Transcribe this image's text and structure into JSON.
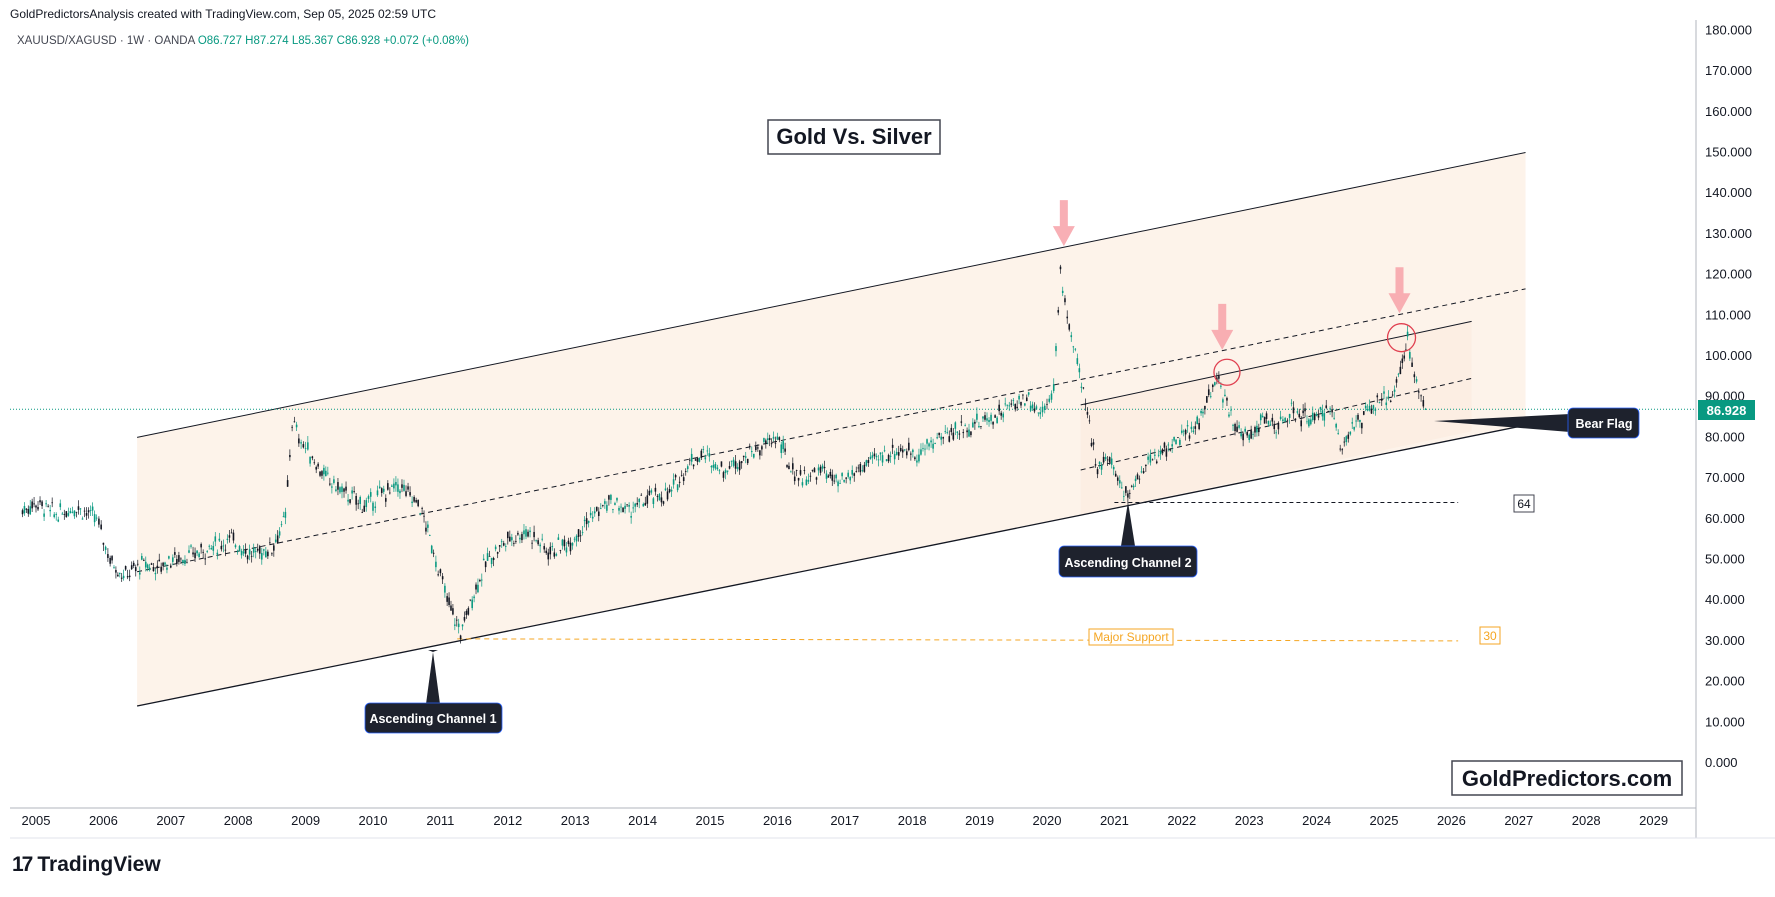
{
  "header": {
    "credit": "GoldPredictorsAnalysis created with TradingView.com, Sep 05, 2025 02:59 UTC",
    "symbol": "XAUUSD/XAGUSD · 1W · OANDA",
    "open": "O86.727",
    "high": "H87.274",
    "low": "L85.367",
    "close": "C86.928",
    "change": "+0.072 (+0.08%)"
  },
  "title": "Gold Vs. Silver",
  "watermark": "GoldPredictors.com",
  "footer": {
    "logo_text": "TradingView",
    "logo_glyph": "17"
  },
  "last_price": "86.928",
  "annotations": {
    "channel1": "Ascending Channel 1",
    "channel2": "Ascending Channel 2",
    "bear_flag": "Bear Flag",
    "major_support": "Major Support",
    "level_64": "64",
    "level_30": "30"
  },
  "colors": {
    "channel_fill": "#fdefe3",
    "up_candle": "#089981",
    "down_candle": "#131722",
    "support_line": "#f5a623",
    "arrow": "#f7a1a8",
    "circle": "#e04050",
    "price_badge": "#089981"
  },
  "chart_data": {
    "type": "line",
    "symbol": "XAUUSD/XAGUSD",
    "interval": "1W",
    "yaxis": {
      "ticks": [
        "180.000",
        "170.000",
        "160.000",
        "150.000",
        "140.000",
        "130.000",
        "120.000",
        "110.000",
        "100.000",
        "90.000",
        "80.000",
        "70.000",
        "60.000",
        "50.000",
        "40.000",
        "30.000",
        "20.000",
        "10.000",
        "0.000"
      ],
      "range": [
        0,
        180
      ]
    },
    "xaxis": {
      "ticks": [
        "2005",
        "2006",
        "2007",
        "2008",
        "2009",
        "2010",
        "2011",
        "2012",
        "2013",
        "2014",
        "2015",
        "2016",
        "2017",
        "2018",
        "2019",
        "2020",
        "2021",
        "2022",
        "2023",
        "2024",
        "2025",
        "2026",
        "2027",
        "2028",
        "2029"
      ]
    },
    "series": [
      {
        "x": [
          2004.8,
          2005.0,
          2005.3,
          2005.6,
          2005.9,
          2006.1,
          2006.3,
          2006.6,
          2006.8,
          2007.0,
          2007.3,
          2007.6,
          2007.9,
          2008.2,
          2008.5,
          2008.7,
          2008.8,
          2008.9,
          2009.1,
          2009.3,
          2009.6,
          2009.9,
          2010.1,
          2010.4,
          2010.7,
          2010.9,
          2011.1,
          2011.3,
          2011.5,
          2011.7,
          2012.0,
          2012.3,
          2012.6,
          2012.9,
          2013.2,
          2013.5,
          2013.8,
          2014.1,
          2014.4,
          2014.7,
          2014.9,
          2015.2,
          2015.5,
          2015.8,
          2016.0,
          2016.2,
          2016.4,
          2016.7,
          2016.9,
          2017.2,
          2017.5,
          2017.8,
          2018.1,
          2018.4,
          2018.7,
          2018.9,
          2019.2,
          2019.5,
          2019.7,
          2019.9,
          2020.1,
          2020.2,
          2020.3,
          2020.45,
          2020.6,
          2020.75,
          2020.9,
          2021.05,
          2021.2,
          2021.4,
          2021.6,
          2021.8,
          2022.0,
          2022.2,
          2022.4,
          2022.55,
          2022.7,
          2022.85,
          2023.0,
          2023.2,
          2023.4,
          2023.6,
          2023.8,
          2024.0,
          2024.2,
          2024.35,
          2024.5,
          2024.7,
          2024.9,
          2025.1,
          2025.3,
          2025.35,
          2025.45,
          2025.55,
          2025.65
        ],
        "values": [
          62,
          64,
          61,
          63,
          60,
          50,
          46,
          49,
          48,
          50,
          51,
          53,
          55,
          51,
          53,
          60,
          84,
          80,
          75,
          70,
          66,
          63,
          66,
          68,
          63,
          52,
          40,
          32,
          42,
          50,
          55,
          57,
          52,
          54,
          60,
          64,
          62,
          65,
          66,
          74,
          76,
          72,
          75,
          78,
          80,
          72,
          70,
          72,
          68,
          72,
          75,
          77,
          76,
          80,
          82,
          83,
          85,
          88,
          90,
          86,
          92,
          120,
          110,
          98,
          85,
          73,
          75,
          70,
          66,
          72,
          75,
          78,
          80,
          82,
          90,
          94,
          86,
          82,
          80,
          85,
          82,
          86,
          85,
          84,
          88,
          78,
          82,
          85,
          88,
          90,
          100,
          104,
          95,
          90,
          86.9
        ]
      }
    ]
  }
}
